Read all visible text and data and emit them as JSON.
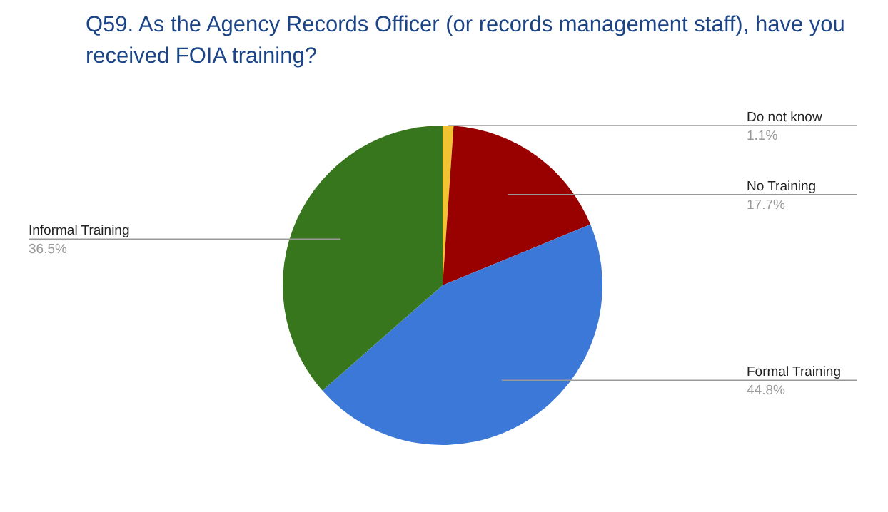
{
  "chart_data": {
    "type": "pie",
    "title": "Q59. As the Agency Records Officer (or records management staff), have you received FOIA training?",
    "categories": [
      "Do not know",
      "No Training",
      "Formal Training",
      "Informal Training"
    ],
    "values": [
      1.1,
      17.7,
      44.8,
      36.5
    ],
    "colors": [
      "#f1c232",
      "#990000",
      "#3c78d8",
      "#38761d"
    ],
    "value_labels": [
      "1.1%",
      "17.7%",
      "44.8%",
      "36.5%"
    ]
  }
}
